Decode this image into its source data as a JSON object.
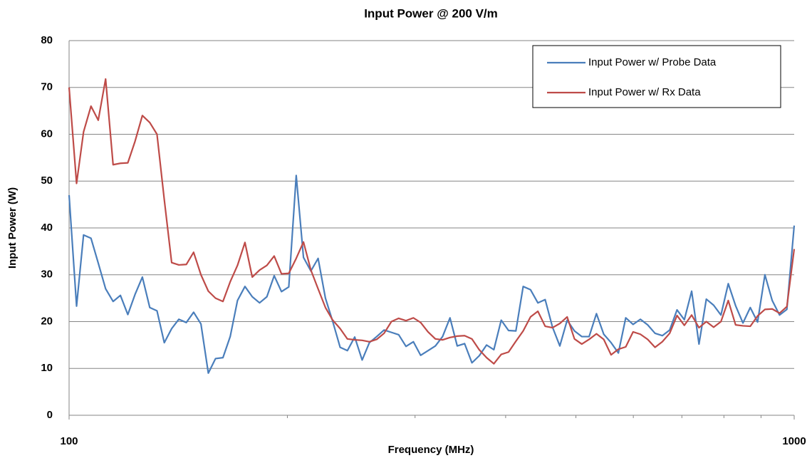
{
  "chart_data": {
    "type": "line",
    "title": "Input Power @ 200 V/m",
    "x_label": "Frequency (MHz)",
    "y_label": "Input Power (W)",
    "x": [
      100,
      102.4,
      104.7,
      107.2,
      109.7,
      112.3,
      115.0,
      117.7,
      120.5,
      123.3,
      126.2,
      129.2,
      132.2,
      135.3,
      138.5,
      141.7,
      145.1,
      148.5,
      152.0,
      155.6,
      159.2,
      163.0,
      166.8,
      170.7,
      174.8,
      178.9,
      183.1,
      187.4,
      191.8,
      196.3,
      200.9,
      205.7,
      210.5,
      215.5,
      220.5,
      225.7,
      231.0,
      236.5,
      242.0,
      247.7,
      253.6,
      259.5,
      265.6,
      271.9,
      278.3,
      284.8,
      291.5,
      298.4,
      305.4,
      312.6,
      320.0,
      327.4,
      335.2,
      343.0,
      351.1,
      359.4,
      367.8,
      376.5,
      385.3,
      394.4,
      403.7,
      413.2,
      422.9,
      432.9,
      443.1,
      453.5,
      464.2,
      475.1,
      486.3,
      497.7,
      509.4,
      521.4,
      533.7,
      546.2,
      559.1,
      572.2,
      585.7,
      599.5,
      613.6,
      628.0,
      642.8,
      657.9,
      673.4,
      689.3,
      705.5,
      722.1,
      739.1,
      756.5,
      774.3,
      792.5,
      811.1,
      830.2,
      849.8,
      869.8,
      890.2,
      911.2,
      932.6,
      954.6,
      977.0,
      1000
    ],
    "series": [
      {
        "name": "Input Power w/ Probe Data",
        "color": "#4a7ebb",
        "values": [
          47,
          23.3,
          38.5,
          37.8,
          32.5,
          27,
          24.3,
          25.6,
          21.5,
          25.8,
          29.5,
          23,
          22.3,
          15.5,
          18.5,
          20.5,
          19.8,
          22,
          19.5,
          9,
          12.1,
          12.3,
          16.8,
          24.5,
          27.5,
          25.3,
          24,
          25.3,
          29.8,
          26.4,
          27.4,
          51.2,
          33.7,
          30.8,
          33.5,
          25,
          20,
          14.5,
          13.8,
          16.7,
          11.8,
          15.5,
          16.8,
          18.2,
          17.7,
          17.2,
          14.7,
          15.7,
          12.8,
          13.8,
          14.8,
          16.8,
          20.8,
          14.8,
          15.3,
          11.2,
          12.7,
          15,
          14,
          20.3,
          18.1,
          18,
          27.5,
          26.8,
          24,
          24.7,
          18.8,
          14.8,
          20.3,
          18,
          16.8,
          16.8,
          21.7,
          17.3,
          15.5,
          13.3,
          20.8,
          19.4,
          20.5,
          19.3,
          17.5,
          17,
          18.2,
          22.5,
          20.4,
          26.5,
          15.2,
          24.8,
          23.5,
          21.4,
          28.1,
          23.4,
          19.7,
          23,
          19.9,
          30,
          24.5,
          21.4,
          22.6,
          40.5
        ]
      },
      {
        "name": "Input Power w/ Rx Data",
        "color": "#be4b48",
        "values": [
          70,
          49.5,
          60.5,
          66,
          63,
          71.8,
          53.5,
          53.8,
          53.9,
          58.5,
          64,
          62.5,
          60,
          46,
          32.6,
          32.1,
          32.2,
          34.8,
          30,
          26.5,
          25,
          24.3,
          28.5,
          32,
          36.9,
          29.5,
          31,
          32,
          34,
          30.2,
          30.3,
          33.5,
          37,
          31,
          27,
          23,
          20.3,
          18.5,
          16.3,
          16.1,
          16,
          15.7,
          16.2,
          17.5,
          20,
          20.7,
          20.2,
          20.8,
          19.8,
          17.8,
          16.3,
          16.1,
          16.6,
          16.9,
          17,
          16.3,
          14,
          12.3,
          11,
          13,
          13.5,
          15.8,
          18,
          21,
          22.2,
          19,
          18.7,
          19.6,
          21,
          16.3,
          15.2,
          16.2,
          17.4,
          16.2,
          12.9,
          14.1,
          14.6,
          17.8,
          17.3,
          16.2,
          14.5,
          15.7,
          17.5,
          21.3,
          19.2,
          21.4,
          18.7,
          20,
          18.8,
          20,
          24.5,
          19.3,
          19.1,
          19,
          21.2,
          22.6,
          22.7,
          21.8,
          23.2,
          35.5
        ]
      }
    ],
    "x_log": true,
    "xlim": [
      100,
      1000
    ],
    "xticks": [
      100,
      1000
    ],
    "x_minor_ticks": [
      200,
      300,
      400,
      500,
      600,
      700,
      800,
      900
    ],
    "ylim": [
      0,
      80
    ],
    "yticks": [
      0,
      10,
      20,
      30,
      40,
      50,
      60,
      70,
      80
    ],
    "grid": true,
    "legend": "top-right"
  }
}
